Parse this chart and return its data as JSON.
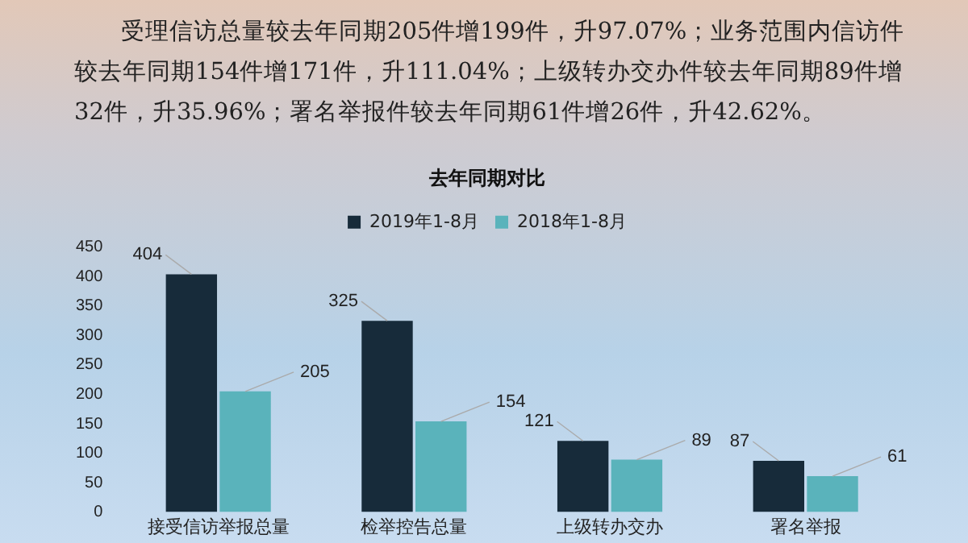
{
  "chart_data": {
    "type": "bar",
    "title": "去年同期对比",
    "annotations": [
      "受理信访总量较去年同期205件增199件，升97.07%；业务范围内信访件较去年同期154件增171件，升111.04%；上级转办交办件较去年同期89件增32件，升35.96%；署名举报件较去年同期61件增26件，升42.62%。"
    ],
    "categories": [
      "接受信访举报总量",
      "检举控告总量",
      "上级转办交办",
      "署名举报"
    ],
    "series": [
      {
        "name": "2019年1-8月",
        "color": "#172b3a",
        "values": [
          404,
          325,
          121,
          87
        ]
      },
      {
        "name": "2018年1-8月",
        "color": "#5ab3bb",
        "values": [
          205,
          154,
          89,
          61
        ]
      }
    ],
    "ylim": [
      0,
      450
    ],
    "yticks": [
      0,
      50,
      100,
      150,
      200,
      250,
      300,
      350,
      400,
      450
    ],
    "grid": false,
    "legend": "top",
    "data_labels": true
  }
}
